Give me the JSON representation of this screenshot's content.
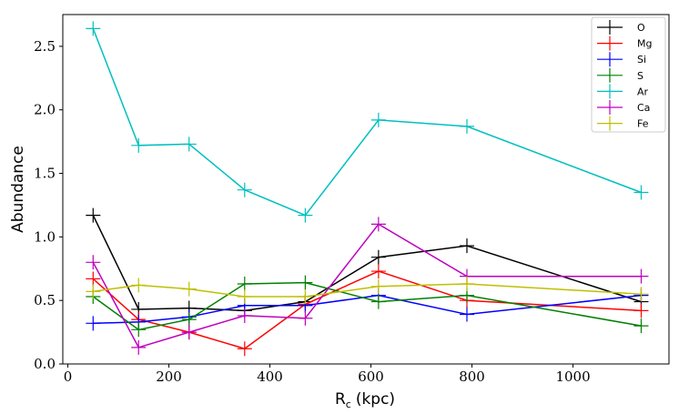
{
  "chart_data": {
    "type": "line",
    "title": "",
    "xlabel": "R",
    "xlabel_sub": "c",
    "xlabel_unit": "(kpc)",
    "ylabel": "Abundance",
    "xlim": [
      -10,
      1190
    ],
    "ylim": [
      0.0,
      2.75
    ],
    "xticks": [
      0,
      200,
      400,
      600,
      800,
      1000
    ],
    "yticks": [
      0.0,
      0.5,
      1.0,
      1.5,
      2.0,
      2.5
    ],
    "xtick_labels": [
      "0",
      "200",
      "400",
      "600",
      "800",
      "1000"
    ],
    "ytick_labels": [
      "0.0",
      "0.5",
      "1.0",
      "1.5",
      "2.0",
      "2.5"
    ],
    "grid": false,
    "legend_position": "top-right",
    "x": [
      50,
      140,
      240,
      350,
      470,
      615,
      790,
      1135
    ],
    "series": [
      {
        "name": "O",
        "color": "#000000",
        "values": [
          1.17,
          0.43,
          0.44,
          0.42,
          0.49,
          0.84,
          0.93,
          0.49
        ]
      },
      {
        "name": "Mg",
        "color": "#ff0000",
        "values": [
          0.67,
          0.35,
          0.25,
          0.12,
          0.47,
          0.73,
          0.5,
          0.42
        ]
      },
      {
        "name": "Si",
        "color": "#0000ff",
        "values": [
          0.32,
          0.33,
          0.37,
          0.46,
          0.46,
          0.54,
          0.39,
          0.54
        ]
      },
      {
        "name": "S",
        "color": "#008000",
        "values": [
          0.53,
          0.27,
          0.35,
          0.63,
          0.64,
          0.49,
          0.54,
          0.3
        ]
      },
      {
        "name": "Ar",
        "color": "#00bfbf",
        "values": [
          2.64,
          1.72,
          1.73,
          1.37,
          1.17,
          1.92,
          1.87,
          1.35
        ]
      },
      {
        "name": "Ca",
        "color": "#bf00bf",
        "values": [
          0.8,
          0.13,
          0.25,
          0.38,
          0.36,
          1.1,
          0.69,
          0.69
        ]
      },
      {
        "name": "Fe",
        "color": "#bfbf00",
        "values": [
          0.57,
          0.62,
          0.59,
          0.53,
          0.53,
          0.61,
          0.63,
          0.55
        ]
      }
    ]
  }
}
